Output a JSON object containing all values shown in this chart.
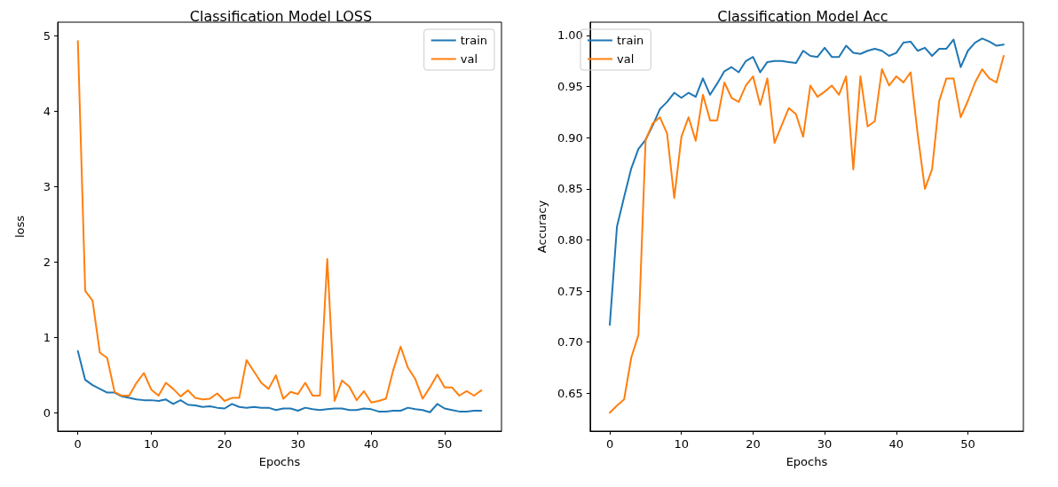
{
  "chart_data": [
    {
      "type": "line",
      "title": "Classification Model LOSS",
      "xlabel": "Epochs",
      "ylabel": "loss",
      "x": [
        0,
        1,
        2,
        3,
        4,
        5,
        6,
        7,
        8,
        9,
        10,
        11,
        12,
        13,
        14,
        15,
        16,
        17,
        18,
        19,
        20,
        21,
        22,
        23,
        24,
        25,
        26,
        27,
        28,
        29,
        30,
        31,
        32,
        33,
        34,
        35,
        36,
        37,
        38,
        39,
        40,
        41,
        42,
        43,
        44,
        45,
        46,
        47,
        48,
        49,
        50,
        51,
        52,
        53,
        54,
        55
      ],
      "series": [
        {
          "name": "train",
          "color": "#1f77b4",
          "values": [
            0.82,
            0.44,
            0.37,
            0.32,
            0.27,
            0.27,
            0.22,
            0.2,
            0.18,
            0.17,
            0.17,
            0.16,
            0.18,
            0.12,
            0.17,
            0.11,
            0.1,
            0.08,
            0.09,
            0.07,
            0.06,
            0.12,
            0.08,
            0.07,
            0.08,
            0.07,
            0.07,
            0.04,
            0.06,
            0.06,
            0.03,
            0.07,
            0.05,
            0.04,
            0.05,
            0.06,
            0.06,
            0.04,
            0.04,
            0.06,
            0.05,
            0.02,
            0.02,
            0.03,
            0.03,
            0.07,
            0.05,
            0.04,
            0.01,
            0.12,
            0.06,
            0.04,
            0.02,
            0.02,
            0.03,
            0.03
          ]
        },
        {
          "name": "val",
          "color": "#ff7f0e",
          "values": [
            4.93,
            1.62,
            1.49,
            0.8,
            0.73,
            0.28,
            0.23,
            0.23,
            0.4,
            0.53,
            0.31,
            0.23,
            0.4,
            0.32,
            0.22,
            0.3,
            0.2,
            0.18,
            0.19,
            0.26,
            0.16,
            0.2,
            0.2,
            0.7,
            0.55,
            0.4,
            0.32,
            0.5,
            0.19,
            0.28,
            0.25,
            0.4,
            0.23,
            0.23,
            2.04,
            0.16,
            0.43,
            0.35,
            0.17,
            0.29,
            0.14,
            0.16,
            0.19,
            0.57,
            0.88,
            0.6,
            0.45,
            0.19,
            0.34,
            0.51,
            0.34,
            0.34,
            0.23,
            0.29,
            0.23,
            0.3
          ]
        }
      ],
      "xlim": [
        -2.75,
        57.75
      ],
      "xticks": [
        0,
        10,
        20,
        30,
        40,
        50
      ],
      "ylim": [
        -0.24,
        5.18
      ],
      "yticks": [
        0,
        1,
        2,
        3,
        4,
        5
      ],
      "legend": "top right",
      "grid": false,
      "marker": "none",
      "line_style": "solid"
    },
    {
      "type": "line",
      "title": "Classification Model Acc",
      "xlabel": "Epochs",
      "ylabel": "Accuracy",
      "x": [
        0,
        1,
        2,
        3,
        4,
        5,
        6,
        7,
        8,
        9,
        10,
        11,
        12,
        13,
        14,
        15,
        16,
        17,
        18,
        19,
        20,
        21,
        22,
        23,
        24,
        25,
        26,
        27,
        28,
        29,
        30,
        31,
        32,
        33,
        34,
        35,
        36,
        37,
        38,
        39,
        40,
        41,
        42,
        43,
        44,
        45,
        46,
        47,
        48,
        49,
        50,
        51,
        52,
        53,
        54,
        55
      ],
      "series": [
        {
          "name": "train",
          "color": "#1f77b4",
          "values": [
            0.717,
            0.813,
            0.842,
            0.87,
            0.889,
            0.898,
            0.912,
            0.928,
            0.935,
            0.944,
            0.939,
            0.944,
            0.94,
            0.958,
            0.942,
            0.953,
            0.965,
            0.969,
            0.964,
            0.975,
            0.979,
            0.964,
            0.974,
            0.975,
            0.975,
            0.974,
            0.973,
            0.985,
            0.98,
            0.979,
            0.988,
            0.979,
            0.979,
            0.99,
            0.983,
            0.982,
            0.985,
            0.987,
            0.985,
            0.98,
            0.983,
            0.993,
            0.994,
            0.985,
            0.988,
            0.98,
            0.987,
            0.987,
            0.996,
            0.969,
            0.985,
            0.993,
            0.997,
            0.994,
            0.99,
            0.991
          ]
        },
        {
          "name": "val",
          "color": "#ff7f0e",
          "values": [
            0.631,
            0.638,
            0.644,
            0.685,
            0.707,
            0.898,
            0.914,
            0.92,
            0.904,
            0.841,
            0.901,
            0.92,
            0.897,
            0.942,
            0.917,
            0.917,
            0.954,
            0.939,
            0.935,
            0.951,
            0.96,
            0.932,
            0.958,
            0.895,
            0.912,
            0.929,
            0.923,
            0.901,
            0.951,
            0.94,
            0.945,
            0.951,
            0.942,
            0.96,
            0.869,
            0.96,
            0.911,
            0.916,
            0.967,
            0.951,
            0.96,
            0.954,
            0.964,
            0.903,
            0.85,
            0.869,
            0.936,
            0.958,
            0.958,
            0.92,
            0.936,
            0.954,
            0.967,
            0.958,
            0.954,
            0.98
          ]
        }
      ],
      "xlim": [
        -2.75,
        57.75
      ],
      "xticks": [
        0,
        10,
        20,
        30,
        40,
        50
      ],
      "ylim": [
        0.613,
        1.013
      ],
      "yticks": [
        0.65,
        {
          "value": 0.7,
          "label": "0.70"
        },
        0.75,
        {
          "value": 0.8,
          "label": "0.80"
        },
        0.85,
        {
          "value": 0.9,
          "label": "0.90"
        },
        0.95,
        {
          "value": 1,
          "label": "1.00"
        }
      ],
      "legend": "top left",
      "grid": false,
      "marker": "none",
      "line_style": "solid"
    }
  ]
}
